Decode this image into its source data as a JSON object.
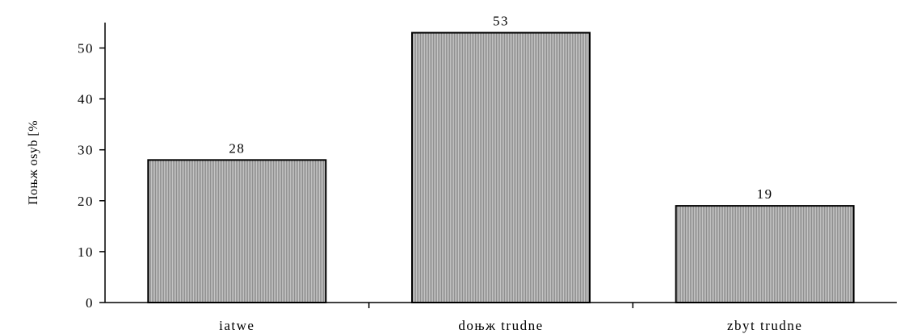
{
  "chart_data": {
    "type": "bar",
    "title": "",
    "xlabel": "",
    "ylabel": "Поњж osyb [%",
    "categories": [
      "iatwe",
      "doњж trudne",
      "zbyt trudne"
    ],
    "values": [
      28,
      53,
      19
    ],
    "data_labels": [
      "28",
      "53",
      "19"
    ],
    "ylim": [
      0,
      55
    ],
    "yticks": [
      0,
      10,
      20,
      30,
      40,
      50
    ],
    "ytick_labels": [
      "0",
      "10",
      "20",
      "30",
      "40",
      "50"
    ],
    "grid": false,
    "legend": "none",
    "bar_fill": "#b8b8b8",
    "bar_stroke": "#000000",
    "bar_pattern": "vertical-hatch"
  }
}
